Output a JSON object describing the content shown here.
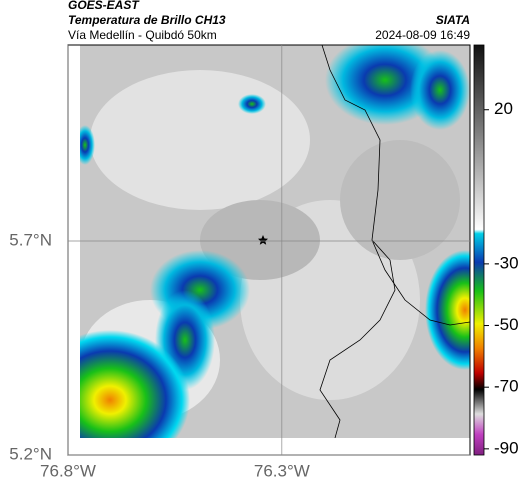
{
  "header": {
    "source": "GOES-EAST",
    "title": "Temperatura de Brillo CH13",
    "subtitle": "Vía Medellín - Quibdó 50km",
    "agency": "SIATA",
    "timestamp": "2024-08-09 16:49"
  },
  "map": {
    "lonlim": [
      -76.8,
      -75.86
    ],
    "latlim": [
      5.2,
      6.158
    ],
    "xticks": [
      {
        "value": -76.8,
        "label": "76.8°W"
      },
      {
        "value": -76.3,
        "label": "76.3°W"
      }
    ],
    "yticks": [
      {
        "value": 5.7,
        "label": "5.7°N"
      },
      {
        "value": 5.2,
        "label": "5.2°N"
      }
    ],
    "grid": true
  },
  "colorbar": {
    "lim": [
      41,
      -92
    ],
    "ticks": [
      20,
      -30,
      -50,
      -70,
      -90
    ]
  }
}
